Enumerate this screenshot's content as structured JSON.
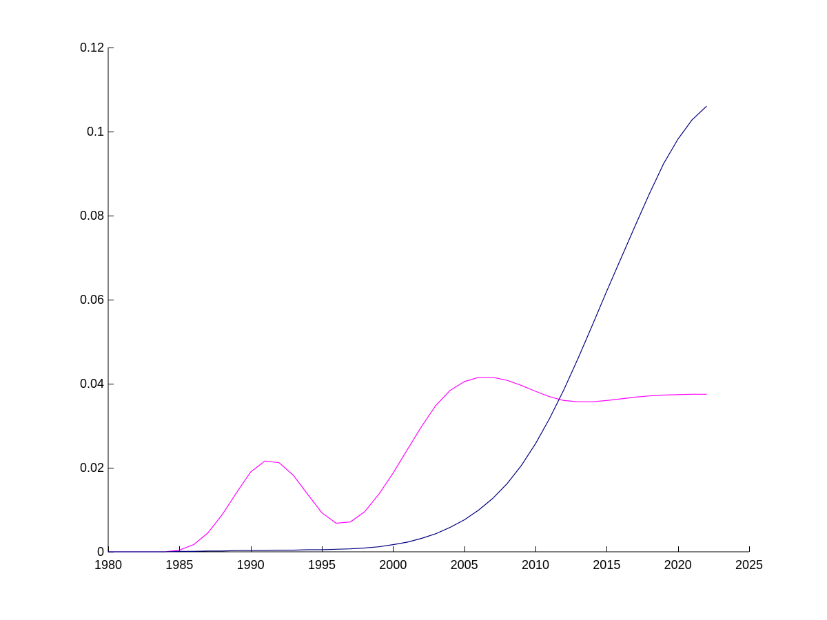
{
  "chart_data": {
    "type": "line",
    "title": "",
    "xlabel": "",
    "ylabel": "",
    "xlim": [
      1980,
      2025
    ],
    "ylim": [
      0,
      0.12
    ],
    "grid": false,
    "x_ticks": [
      1980,
      1985,
      1990,
      1995,
      2000,
      2005,
      2010,
      2015,
      2020,
      2025
    ],
    "x_tick_labels": [
      "1980",
      "1985",
      "1990",
      "1995",
      "2000",
      "2005",
      "2010",
      "2015",
      "2020",
      "2025"
    ],
    "y_ticks": [
      0,
      0.02,
      0.04,
      0.06,
      0.08,
      0.1,
      0.12
    ],
    "y_tick_labels": [
      "0",
      "0.02",
      "0.04",
      "0.06",
      "0.08",
      "0.1",
      "0.12"
    ],
    "series": [
      {
        "color": "#ff00ff",
        "x": [
          1980,
          1981,
          1982,
          1983,
          1984,
          1985,
          1986,
          1987,
          1988,
          1989,
          1990,
          1991,
          1992,
          1993,
          1994,
          1995,
          1996,
          1997,
          1998,
          1999,
          2000,
          2001,
          2002,
          2003,
          2004,
          2005,
          2006,
          2007,
          2008,
          2009,
          2010,
          2011,
          2012,
          2013,
          2014,
          2015,
          2016,
          2017,
          2018,
          2019,
          2020,
          2021,
          2022
        ],
        "values": [
          0,
          0,
          0,
          0,
          0,
          0.0004,
          0.0017,
          0.0045,
          0.0088,
          0.014,
          0.019,
          0.0216,
          0.0212,
          0.0182,
          0.0137,
          0.0093,
          0.0068,
          0.0071,
          0.0095,
          0.0137,
          0.0187,
          0.0243,
          0.0298,
          0.0348,
          0.0384,
          0.0405,
          0.0415,
          0.0415,
          0.0408,
          0.0396,
          0.0382,
          0.0369,
          0.036,
          0.0357,
          0.0357,
          0.036,
          0.0364,
          0.0368,
          0.0371,
          0.0373,
          0.0374,
          0.0375,
          0.0375
        ]
      },
      {
        "color": "#000080",
        "x": [
          1980,
          1981,
          1982,
          1983,
          1984,
          1985,
          1986,
          1987,
          1988,
          1989,
          1990,
          1991,
          1992,
          1993,
          1994,
          1995,
          1996,
          1997,
          1998,
          1999,
          2000,
          2001,
          2002,
          2003,
          2004,
          2005,
          2006,
          2007,
          2008,
          2009,
          2010,
          2011,
          2012,
          2013,
          2014,
          2015,
          2016,
          2017,
          2018,
          2019,
          2020,
          2021,
          2022
        ],
        "values": [
          0,
          0,
          0,
          0,
          0,
          0.0001,
          0.0001,
          0.0002,
          0.0002,
          0.0003,
          0.0003,
          0.0003,
          0.0004,
          0.0004,
          0.0005,
          0.0005,
          0.0006,
          0.0007,
          0.0009,
          0.0012,
          0.0017,
          0.0023,
          0.0032,
          0.0043,
          0.0058,
          0.0076,
          0.0099,
          0.0127,
          0.0162,
          0.0205,
          0.0257,
          0.0318,
          0.0386,
          0.0461,
          0.054,
          0.062,
          0.0698,
          0.0776,
          0.0852,
          0.0924,
          0.0982,
          0.1028,
          0.106
        ]
      }
    ]
  }
}
